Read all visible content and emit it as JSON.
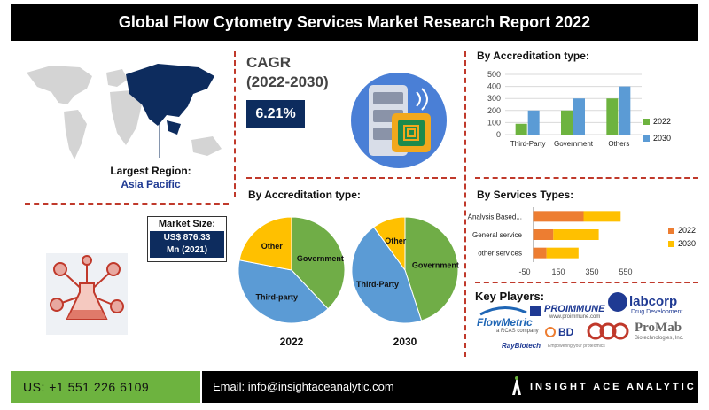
{
  "title": "Global  Flow Cytometry Services Market Research Report 2022",
  "largest_region": {
    "label": "Largest Region:",
    "value": "Asia Pacific"
  },
  "cagr": {
    "label_line1": "CAGR",
    "label_line2": "(2022-2030)",
    "value": "6.21%"
  },
  "market_size": {
    "label": "Market Size:",
    "value_line1": "US$ 876.33",
    "value_line2": "Mn (2021)"
  },
  "colors": {
    "y2022": "#6db33f",
    "y2030": "#5b9bd5",
    "bar2022": "#ed7d31",
    "bar2030": "#ffc000",
    "pie_government": "#70ad47",
    "pie_third": "#5b9bd5",
    "pie_other": "#ffc000"
  },
  "chart_data": [
    {
      "type": "bar",
      "title": "By Accreditation type:",
      "categories": [
        "Third-Party",
        "Government",
        "Others"
      ],
      "series": [
        {
          "name": "2022",
          "values": [
            90,
            200,
            300
          ]
        },
        {
          "name": "2030",
          "values": [
            200,
            300,
            400
          ]
        }
      ],
      "ylim": [
        0,
        500
      ],
      "yticks": [
        "0",
        "100",
        "200",
        "300",
        "400",
        "500"
      ],
      "grid": true,
      "legend": "right"
    },
    {
      "type": "pie",
      "title": "By Accreditation type:",
      "charts": [
        {
          "label": "2022",
          "slices": [
            {
              "name": "Government",
              "value": 38
            },
            {
              "name": "Third-party",
              "value": 40
            },
            {
              "name": "Other",
              "value": 22
            }
          ]
        },
        {
          "label": "2030",
          "slices": [
            {
              "name": "Government",
              "value": 45
            },
            {
              "name": "Third-Party",
              "value": 45
            },
            {
              "name": "Other",
              "value": 10
            }
          ]
        }
      ]
    },
    {
      "type": "bar",
      "orientation": "horizontal-stacked",
      "title": "By Services Types:",
      "categories": [
        "Analysis Based...",
        "General service",
        "other services"
      ],
      "series": [
        {
          "name": "2022",
          "values": [
            300,
            120,
            80
          ]
        },
        {
          "name": "2030",
          "values": [
            220,
            270,
            190
          ]
        }
      ],
      "xlim": [
        -50,
        550
      ],
      "xticks": [
        "-50",
        "150",
        "350",
        "550"
      ],
      "legend": "right"
    }
  ],
  "key_players": {
    "title": "Key Players:",
    "logos": [
      "FlowMetric",
      "a RCAS company",
      "PROIMMUNE",
      "www.proimmune.com",
      "labcorp",
      "Drug Development",
      "BD",
      "ProMab",
      "Biotechnologies, Inc.",
      "RayBiotech",
      "Empowering your proteomics"
    ]
  },
  "footer": {
    "phone": "US: +1 551 226 6109",
    "email": "Email: info@insightaceanalytic.com",
    "brand": "INSIGHT ACE ANALYTIC"
  }
}
